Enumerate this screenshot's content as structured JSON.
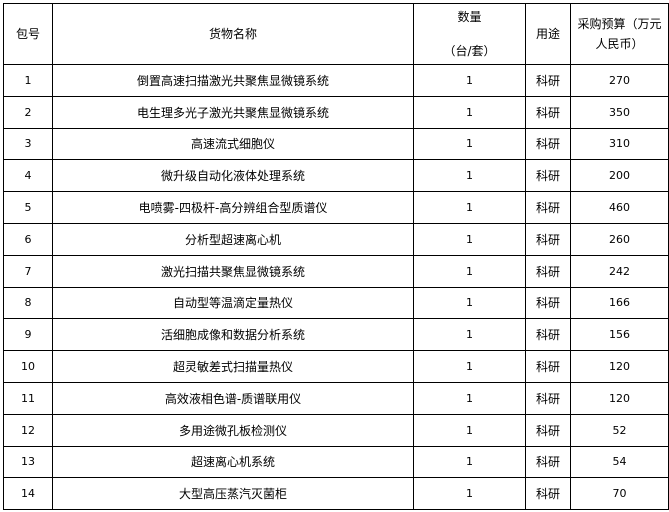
{
  "table": {
    "headers": {
      "package": "包号",
      "name": "货物名称",
      "qty_line1": "数量",
      "qty_line2": "（台/套）",
      "use": "用途",
      "budget_line1": "采购预算（万元",
      "budget_line2": "人民币）"
    },
    "rows": [
      {
        "no": "1",
        "name": "倒置高速扫描激光共聚焦显微镜系统",
        "qty": "1",
        "use": "科研",
        "budget": "270"
      },
      {
        "no": "2",
        "name": "电生理多光子激光共聚焦显微镜系统",
        "qty": "1",
        "use": "科研",
        "budget": "350"
      },
      {
        "no": "3",
        "name": "高速流式细胞仪",
        "qty": "1",
        "use": "科研",
        "budget": "310"
      },
      {
        "no": "4",
        "name": "微升级自动化液体处理系统",
        "qty": "1",
        "use": "科研",
        "budget": "200"
      },
      {
        "no": "5",
        "name": "电喷雾-四极杆-高分辨组合型质谱仪",
        "qty": "1",
        "use": "科研",
        "budget": "460"
      },
      {
        "no": "6",
        "name": "分析型超速离心机",
        "qty": "1",
        "use": "科研",
        "budget": "260"
      },
      {
        "no": "7",
        "name": "激光扫描共聚焦显微镜系统",
        "qty": "1",
        "use": "科研",
        "budget": "242"
      },
      {
        "no": "8",
        "name": "自动型等温滴定量热仪",
        "qty": "1",
        "use": "科研",
        "budget": "166"
      },
      {
        "no": "9",
        "name": "活细胞成像和数据分析系统",
        "qty": "1",
        "use": "科研",
        "budget": "156"
      },
      {
        "no": "10",
        "name": "超灵敏差式扫描量热仪",
        "qty": "1",
        "use": "科研",
        "budget": "120"
      },
      {
        "no": "11",
        "name": "高效液相色谱-质谱联用仪",
        "qty": "1",
        "use": "科研",
        "budget": "120"
      },
      {
        "no": "12",
        "name": "多用途微孔板检测仪",
        "qty": "1",
        "use": "科研",
        "budget": "52"
      },
      {
        "no": "13",
        "name": "超速离心机系统",
        "qty": "1",
        "use": "科研",
        "budget": "54"
      },
      {
        "no": "14",
        "name": "大型高压蒸汽灭菌柜",
        "qty": "1",
        "use": "科研",
        "budget": "70"
      }
    ]
  }
}
